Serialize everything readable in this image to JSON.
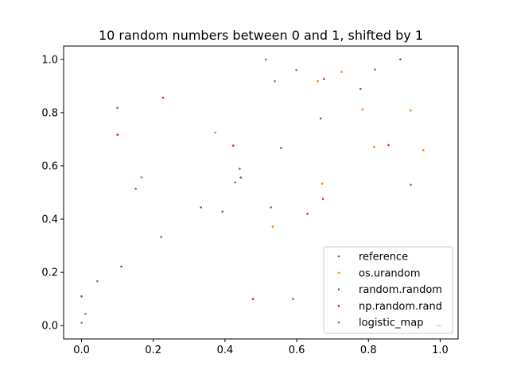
{
  "chart_data": {
    "type": "scatter",
    "title": "10 random numbers between 0 and 1, shifted by 1",
    "xlabel": "",
    "ylabel": "",
    "xlim": [
      -0.05,
      1.05
    ],
    "ylim": [
      -0.05,
      1.05
    ],
    "x_ticks": [
      0.0,
      0.2,
      0.4,
      0.6,
      0.8,
      1.0
    ],
    "x_tick_labels": [
      "0.0",
      "0.2",
      "0.4",
      "0.6",
      "0.8",
      "1.0"
    ],
    "y_ticks": [
      0.0,
      0.2,
      0.4,
      0.6,
      0.8,
      1.0
    ],
    "y_tick_labels": [
      "0.0",
      "0.2",
      "0.4",
      "0.6",
      "0.8",
      "1.0"
    ],
    "grid": false,
    "legend_position": "lower-right",
    "series": [
      {
        "name": "reference",
        "color": "#1f77b4",
        "points": [
          [
            0.0,
            0.11
          ],
          [
            0.111,
            0.222
          ],
          [
            0.222,
            0.333
          ],
          [
            0.333,
            0.444
          ],
          [
            0.444,
            0.556
          ],
          [
            0.556,
            0.667
          ],
          [
            0.667,
            0.778
          ],
          [
            0.778,
            0.889
          ],
          [
            0.889,
            1.0
          ],
          [
            1.0,
            0.0
          ]
        ]
      },
      {
        "name": "os.urandom",
        "color": "#ff7f0e",
        "points": [
          [
            0.373,
            0.725
          ],
          [
            0.533,
            0.372
          ],
          [
            0.659,
            0.918
          ],
          [
            0.671,
            0.533
          ],
          [
            0.725,
            0.953
          ],
          [
            0.784,
            0.812
          ],
          [
            0.816,
            0.671
          ],
          [
            0.918,
            0.808
          ],
          [
            0.953,
            0.659
          ],
          [
            0.993,
            0.0
          ]
        ]
      },
      {
        "name": "random.random",
        "color": "#2ca02c",
        "points": [
          [
            0.1,
            0.818
          ],
          [
            0.393,
            0.428
          ],
          [
            0.428,
            0.538
          ],
          [
            0.441,
            0.589
          ],
          [
            0.528,
            0.444
          ],
          [
            0.539,
            0.918
          ],
          [
            0.59,
            0.1
          ],
          [
            0.818,
            0.962
          ],
          [
            0.918,
            0.529
          ],
          [
            0.995,
            0.0
          ]
        ]
      },
      {
        "name": "np.random.rand",
        "color": "#d62728",
        "points": [
          [
            0.1,
            0.717
          ],
          [
            0.227,
            0.856
          ],
          [
            0.423,
            0.676
          ],
          [
            0.478,
            0.1
          ],
          [
            0.63,
            0.42
          ],
          [
            0.673,
            0.476
          ],
          [
            0.676,
            0.926
          ],
          [
            0.856,
            0.678
          ],
          [
            0.926,
            0.23
          ],
          [
            0.997,
            0.0
          ]
        ]
      },
      {
        "name": "logistic_map",
        "color": "#9467bd",
        "points": [
          [
            0.0,
            0.011
          ],
          [
            0.011,
            0.044
          ],
          [
            0.044,
            0.167
          ],
          [
            0.151,
            0.514
          ],
          [
            0.167,
            0.557
          ],
          [
            0.514,
            0.999
          ],
          [
            0.599,
            0.96
          ],
          [
            0.96,
            0.152
          ],
          [
            0.999,
            0.0
          ],
          [
            1.0,
            0.0
          ]
        ]
      }
    ]
  }
}
